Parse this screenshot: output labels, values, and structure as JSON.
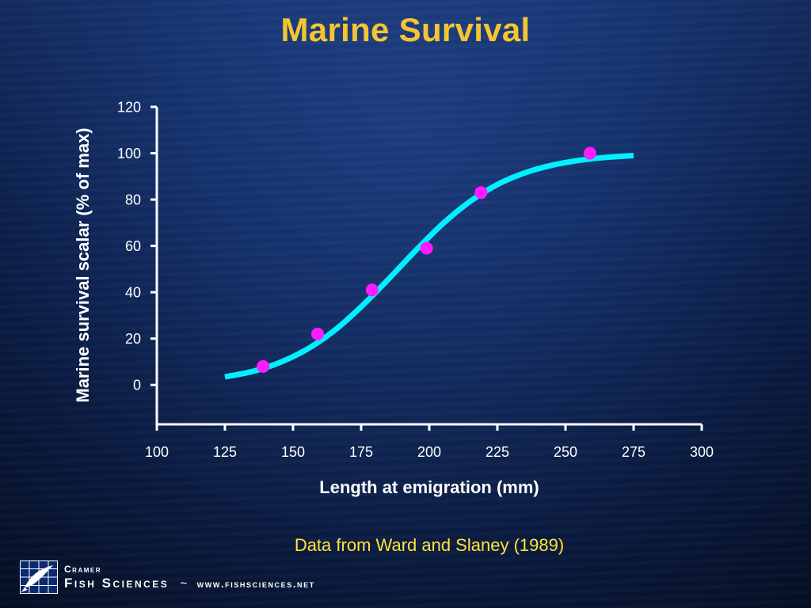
{
  "slide": {
    "title": "Marine Survival",
    "source_note": "Data from Ward and Slaney (1989)",
    "brand_top": "Cramer",
    "brand_name": "Fish Sciences",
    "brand_sep": "~",
    "brand_url": "www.fishsciences.net",
    "colors": {
      "title": "#f5c431",
      "source_note": "#ffe33a",
      "curve": "#00f0ff",
      "points": "#ff1aff",
      "axis": "#ffffff"
    },
    "logo_icon": "fish-grid-logo-icon"
  },
  "chart_data": {
    "type": "scatter",
    "title": "Marine Survival",
    "xlabel": "Length at emigration (mm)",
    "ylabel": "Marine survival scalar (% of max)",
    "xlim": [
      100,
      300
    ],
    "ylim": [
      -17,
      120
    ],
    "x_ticks": [
      100,
      125,
      150,
      175,
      200,
      225,
      250,
      275,
      300
    ],
    "y_ticks": [
      0,
      20,
      40,
      60,
      80,
      100,
      120
    ],
    "grid": false,
    "legend": "none",
    "series": [
      {
        "type": "scatter",
        "color": "#ff1aff",
        "x": [
          139,
          159,
          179,
          199,
          219,
          259
        ],
        "y": [
          8,
          22,
          41,
          59,
          83,
          100
        ]
      },
      {
        "type": "line",
        "color": "#00f0ff",
        "x": [
          125,
          135,
          145,
          155,
          165,
          175,
          185,
          195,
          205,
          215,
          225,
          235,
          245,
          255,
          265,
          275
        ],
        "y": [
          3.5,
          5.8,
          9.6,
          15.3,
          23.3,
          33.7,
          45.6,
          58.0,
          69.6,
          79.2,
          86.5,
          91.5,
          94.8,
          96.9,
          98.2,
          99.0
        ]
      }
    ]
  }
}
